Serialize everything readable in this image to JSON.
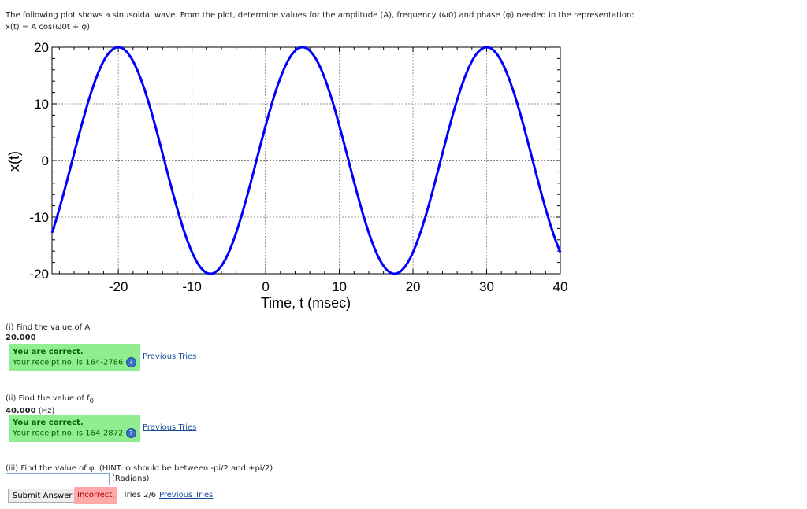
{
  "intro": {
    "line1": "The following plot shows a sinusoidal wave. From the plot, determine values for the amplitude (A), frequency (ω0) and phase (φ) needed in the representation:",
    "line2": "x(t) = A cos(ω0t + φ)"
  },
  "chart_data": {
    "type": "line",
    "xlabel": "Time, t (msec)",
    "ylabel": "x(t)",
    "xlim": [
      -29,
      40
    ],
    "ylim": [
      -20,
      20
    ],
    "xticks": [
      "-20",
      "-10",
      "0",
      "10",
      "20",
      "30",
      "40"
    ],
    "yticks": [
      "20",
      "10",
      "0",
      "-10",
      "-20"
    ],
    "grid": true,
    "function": {
      "amplitude": 20,
      "frequency_hz": 40,
      "phase_rad": -1.2566
    },
    "peaks_t": [
      -20,
      5,
      30
    ],
    "troughs_t": [
      -7.5,
      17.5
    ],
    "line_color": "#0000ff"
  },
  "q1": {
    "prompt": "(i) Find the value of A.",
    "answer": "20.000",
    "status": "You are correct.",
    "receipt": "Your receipt no. is 164-2786",
    "prev": "Previous Tries"
  },
  "q2": {
    "prompt": "(ii) Find the value of f",
    "sub": "0",
    "dot": ".",
    "answer": "40.000",
    "unit": "(Hz)",
    "status": "You are correct.",
    "receipt": "Your receipt no. is 164-2872",
    "prev": "Previous Tries"
  },
  "q3": {
    "prompt": "(iii) Find the value of φ. (HINT: φ should be between -pi/2 and +pi/2)",
    "value": "",
    "unit": "(Radians)",
    "submit": "Submit Answer",
    "status": "Incorrect.",
    "tries": "Tries 2/6",
    "prev": "Previous Tries"
  }
}
